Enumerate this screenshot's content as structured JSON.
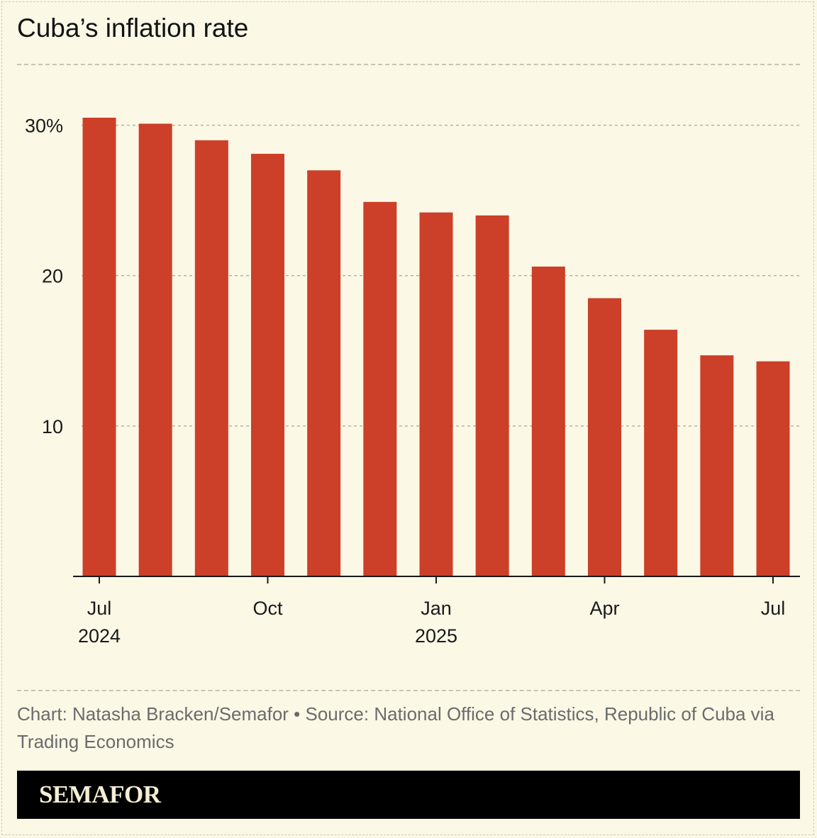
{
  "chart_data": {
    "type": "bar",
    "title": "Cuba’s inflation rate",
    "categories": [
      "Jul 2024",
      "Aug 2024",
      "Sep 2024",
      "Oct 2024",
      "Nov 2024",
      "Dec 2024",
      "Jan 2025",
      "Feb 2025",
      "Mar 2025",
      "Apr 2025",
      "May 2025",
      "Jun 2025",
      "Jul 2025"
    ],
    "values": [
      30.5,
      30.1,
      29.0,
      28.1,
      27.0,
      24.9,
      24.2,
      24.0,
      20.6,
      18.5,
      16.4,
      14.7,
      14.3
    ],
    "ylim": [
      0,
      30.5
    ],
    "y_ticks": [
      {
        "value": 10,
        "label": "10"
      },
      {
        "value": 20,
        "label": "20"
      },
      {
        "value": 30,
        "label": "30%"
      }
    ],
    "x_ticks": [
      {
        "index": 0,
        "label": "Jul",
        "sublabel": "2024"
      },
      {
        "index": 3,
        "label": "Oct",
        "sublabel": ""
      },
      {
        "index": 6,
        "label": "Jan",
        "sublabel": "2025"
      },
      {
        "index": 9,
        "label": "Apr",
        "sublabel": ""
      },
      {
        "index": 12,
        "label": "Jul",
        "sublabel": ""
      }
    ],
    "bar_color": "#cc3f29",
    "grid": true,
    "legend": "none"
  },
  "credit": "Chart: Natasha Bracken/Semafor • Source: National Office of Statistics, Republic of Cuba via Trading Economics",
  "brand": "SEMAFOR",
  "colors": {
    "background": "#fbf8e6",
    "grid": "#b8b39c",
    "bar": "#cc3f29",
    "brand_bar": "#000000",
    "brand_text": "#f4eed3"
  }
}
